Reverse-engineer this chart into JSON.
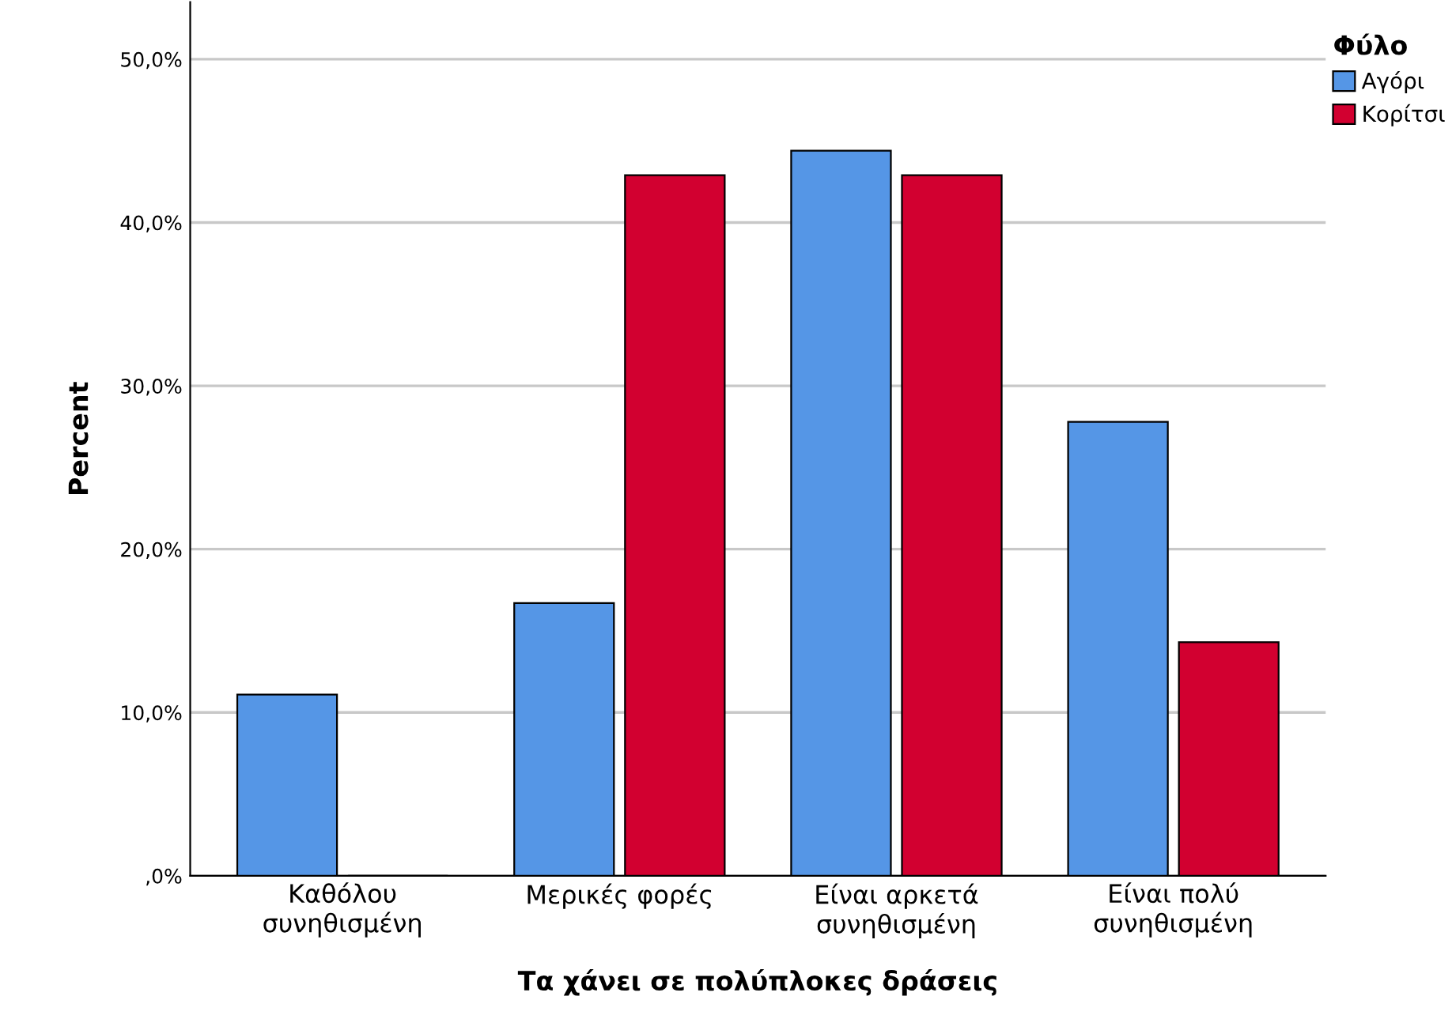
{
  "chart_data": {
    "type": "bar",
    "xlabel": "Τα χάνει σε πολύπλοκες δράσεις",
    "ylabel": "Percent",
    "legend_title": "Φύλο",
    "categories": [
      "Καθόλου\nσυνηθισμένη",
      "Μερικές φορές",
      "Είναι αρκετά\nσυνηθισμένη",
      "Είναι πολύ\nσυνηθισμένη"
    ],
    "series": [
      {
        "name": "Αγόρι",
        "color": "#5596e6",
        "values": [
          11.1,
          16.7,
          44.4,
          27.8
        ]
      },
      {
        "name": "Κορίτσι",
        "color": "#d20030",
        "values": [
          0,
          42.9,
          42.9,
          14.3
        ]
      }
    ],
    "ylim": [
      0,
      53.5
    ],
    "yticks": [
      {
        "value": 0,
        "label": ",0%"
      },
      {
        "value": 10,
        "label": "10,0%"
      },
      {
        "value": 20,
        "label": "20,0%"
      },
      {
        "value": 30,
        "label": "30,0%"
      },
      {
        "value": 40,
        "label": "40,0%"
      },
      {
        "value": 50,
        "label": "50,0%"
      }
    ],
    "grid": "y",
    "legend": "top right"
  }
}
